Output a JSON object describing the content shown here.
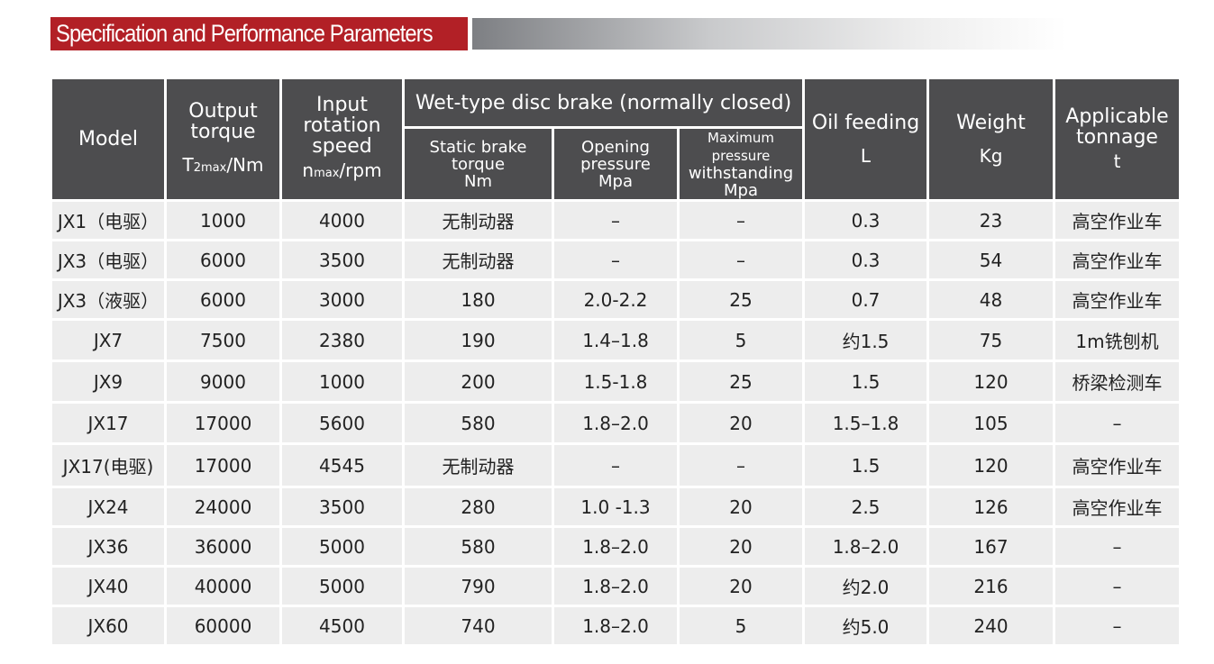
{
  "title": "Specification and Performance Parameters",
  "header": {
    "model": "Model",
    "output_torque": {
      "label": "Output torque",
      "unit_main": "T",
      "unit_sub": "2max",
      "unit_rest": "/Nm"
    },
    "input_speed": {
      "label": "Input rotation speed",
      "unit_main": "n",
      "unit_sub": "max",
      "unit_rest": "/rpm"
    },
    "brake_group": "Wet-type disc brake (normally closed)",
    "static_brake": {
      "label": "Static brake torque",
      "unit": "Nm"
    },
    "opening_pressure": {
      "label": "Opening pressure",
      "unit": "Mpa"
    },
    "max_pressure": {
      "label1": "Maximum pressure",
      "label2": "withstanding",
      "unit": "Mpa"
    },
    "oil": {
      "label": "Oil feeding",
      "unit": "L"
    },
    "weight": {
      "label": "Weight",
      "unit": "Kg"
    },
    "tonnage": {
      "label": "Applicable tonnage",
      "unit": "t"
    }
  },
  "rows": [
    [
      "JX1（电驱）",
      "1000",
      "4000",
      "无制动器",
      "–",
      "–",
      "0.3",
      "23",
      "高空作业车"
    ],
    [
      "JX3（电驱）",
      "6000",
      "3500",
      "无制动器",
      "–",
      "–",
      "0.3",
      "54",
      "高空作业车"
    ],
    [
      "JX3（液驱）",
      "6000",
      "3000",
      "180",
      "2.0-2.2",
      "25",
      "0.7",
      "48",
      "高空作业车"
    ],
    [
      "JX7",
      "7500",
      "2380",
      "190",
      "1.4–1.8",
      "5",
      "约1.5",
      "75",
      "1m铣刨机"
    ],
    [
      "JX9",
      "9000",
      "1000",
      "200",
      "1.5-1.8",
      "25",
      "1.5",
      "120",
      "桥梁检测车"
    ],
    [
      "JX17",
      "17000",
      "5600",
      "580",
      "1.8–2.0",
      "20",
      "1.5–1.8",
      "105",
      "–"
    ],
    [
      "JX17(电驱)",
      "17000",
      "4545",
      "无制动器",
      "–",
      "–",
      "1.5",
      "120",
      "高空作业车"
    ],
    [
      "JX24",
      "24000",
      "3500",
      "280",
      "1.0 -1.3",
      "20",
      "2.5",
      "126",
      "高空作业车"
    ],
    [
      "JX36",
      "36000",
      "5000",
      "580",
      "1.8–2.0",
      "20",
      "1.8–2.0",
      "167",
      "–"
    ],
    [
      "JX40",
      "40000",
      "5000",
      "790",
      "1.8–2.0",
      "20",
      "约2.0",
      "216",
      "–"
    ],
    [
      "JX60",
      "60000",
      "4500",
      "740",
      "1.8–2.0",
      "5",
      "约5.0",
      "240",
      "–"
    ]
  ]
}
